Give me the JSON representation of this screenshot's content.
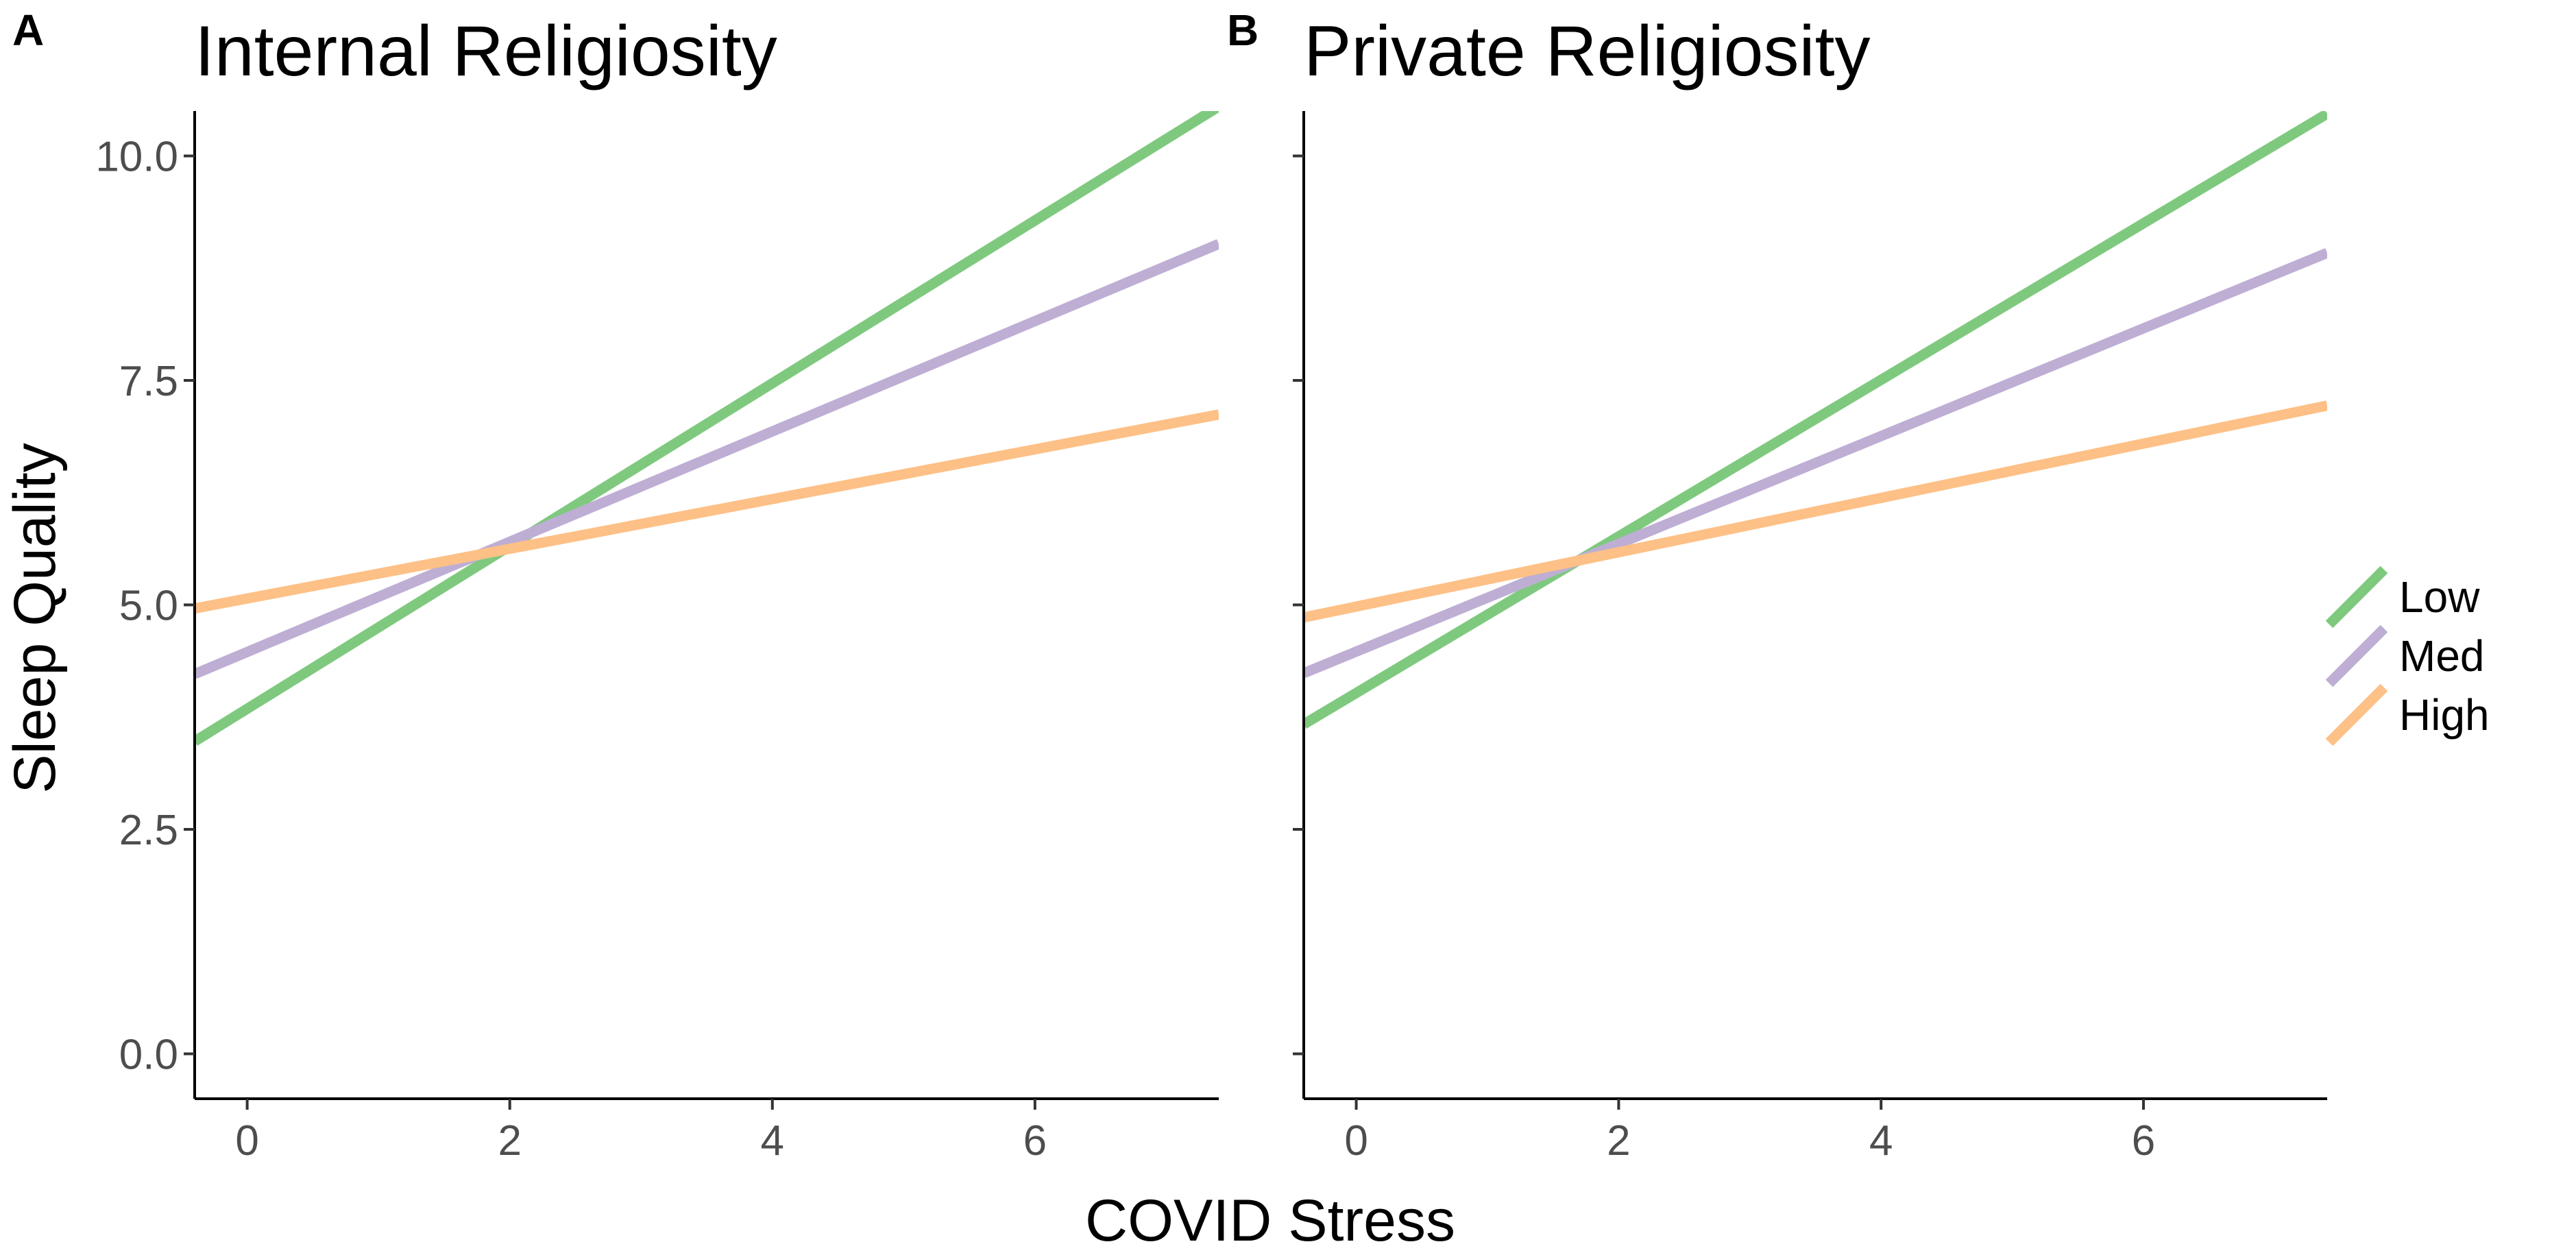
{
  "chart_data": [
    {
      "type": "line",
      "panel_label": "A",
      "title": "Internal Religiosity",
      "xlabel": "COVID Stress",
      "ylabel": "Sleep Quality",
      "xlim": [
        -0.4,
        7.4
      ],
      "ylim": [
        -0.5,
        10.5
      ],
      "x_ticks": [
        0,
        2,
        4,
        6
      ],
      "x_tick_labels": [
        "0",
        "2",
        "4",
        "6"
      ],
      "y_ticks": [
        0,
        2.5,
        5,
        7.5,
        10
      ],
      "y_tick_labels": [
        "0.0",
        "2.5",
        "5.0",
        "7.5",
        "10.0"
      ],
      "grid": false,
      "series": [
        {
          "name": "Low",
          "color": "#7fc97f",
          "x": [
            -0.4,
            7.4
          ],
          "y": [
            3.48,
            10.55
          ]
        },
        {
          "name": "Med",
          "color": "#beaed4",
          "x": [
            -0.4,
            7.4
          ],
          "y": [
            4.23,
            9.02
          ]
        },
        {
          "name": "High",
          "color": "#fdc086",
          "x": [
            -0.4,
            7.4
          ],
          "y": [
            4.96,
            7.12
          ]
        }
      ]
    },
    {
      "type": "line",
      "panel_label": "B",
      "title": "Private Religiosity",
      "xlabel": "COVID Stress",
      "ylabel": "Sleep Quality",
      "xlim": [
        -0.4,
        7.4
      ],
      "ylim": [
        -0.5,
        10.5
      ],
      "x_ticks": [
        0,
        2,
        4,
        6
      ],
      "x_tick_labels": [
        "0",
        "2",
        "4",
        "6"
      ],
      "y_ticks": [
        0,
        2.5,
        5,
        7.5,
        10
      ],
      "y_tick_labels": [
        "0.0",
        "2.5",
        "5.0",
        "7.5",
        "10.0"
      ],
      "grid": false,
      "series": [
        {
          "name": "Low",
          "color": "#7fc97f",
          "x": [
            -0.4,
            7.4
          ],
          "y": [
            3.67,
            10.47
          ]
        },
        {
          "name": "Med",
          "color": "#beaed4",
          "x": [
            -0.4,
            7.4
          ],
          "y": [
            4.24,
            8.92
          ]
        },
        {
          "name": "High",
          "color": "#fdc086",
          "x": [
            -0.4,
            7.4
          ],
          "y": [
            4.86,
            7.22
          ]
        }
      ]
    }
  ],
  "shared": {
    "xlabel": "COVID Stress",
    "ylabel": "Sleep Quality"
  },
  "legend": {
    "placement": "right",
    "items": [
      {
        "label": "Low",
        "color": "#7fc97f"
      },
      {
        "label": "Med",
        "color": "#beaed4"
      },
      {
        "label": "High",
        "color": "#fdc086"
      }
    ]
  }
}
